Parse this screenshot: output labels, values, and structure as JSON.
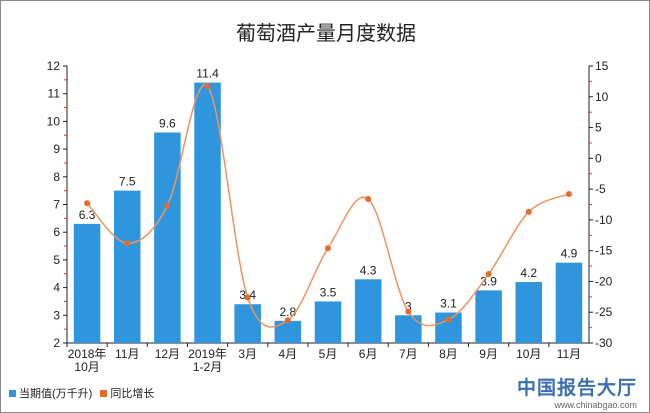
{
  "chart_data": {
    "type": "bar+line",
    "title": "葡萄酒产量月度数据",
    "categories": [
      "2018年\n10月",
      "11月",
      "12月",
      "2019年\n1-2月",
      "3月",
      "4月",
      "5月",
      "6月",
      "7月",
      "8月",
      "9月",
      "10月",
      "11月"
    ],
    "series": [
      {
        "name": "当期值(万千升)",
        "type": "bar",
        "axis": "left",
        "color": "#2f96de",
        "values": [
          6.3,
          7.5,
          9.6,
          11.4,
          3.4,
          2.8,
          3.5,
          4.3,
          3,
          3.1,
          3.9,
          4.2,
          4.9
        ],
        "labels": [
          "6.3",
          "7.5",
          "9.6",
          "11.4",
          "3.4",
          "2.8",
          "3.5",
          "4.3",
          "3",
          "3.1",
          "3.9",
          "4.2",
          "4.9"
        ]
      },
      {
        "name": "同比增长",
        "type": "line",
        "axis": "right",
        "color": "#e8692c",
        "values": [
          -7.3,
          -13.8,
          -7.7,
          11.7,
          -22.6,
          -26.3,
          -14.6,
          -6.6,
          -24.9,
          -26.2,
          -18.8,
          -8.7,
          -5.8
        ]
      }
    ],
    "left_axis": {
      "range": [
        2,
        12
      ],
      "ticks": [
        "2",
        "3",
        "4",
        "5",
        "6",
        "7",
        "8",
        "9",
        "10",
        "11",
        "12"
      ]
    },
    "right_axis": {
      "range": [
        -30,
        15
      ],
      "ticks": [
        "-30",
        "-25",
        "-20",
        "-15",
        "-10",
        "-5",
        "0",
        "5",
        "10",
        "15"
      ]
    },
    "grid": false,
    "legend": "bottom-left"
  },
  "watermark": {
    "name": "中国报告大厅",
    "url_text": "www.chinabgao.com"
  }
}
